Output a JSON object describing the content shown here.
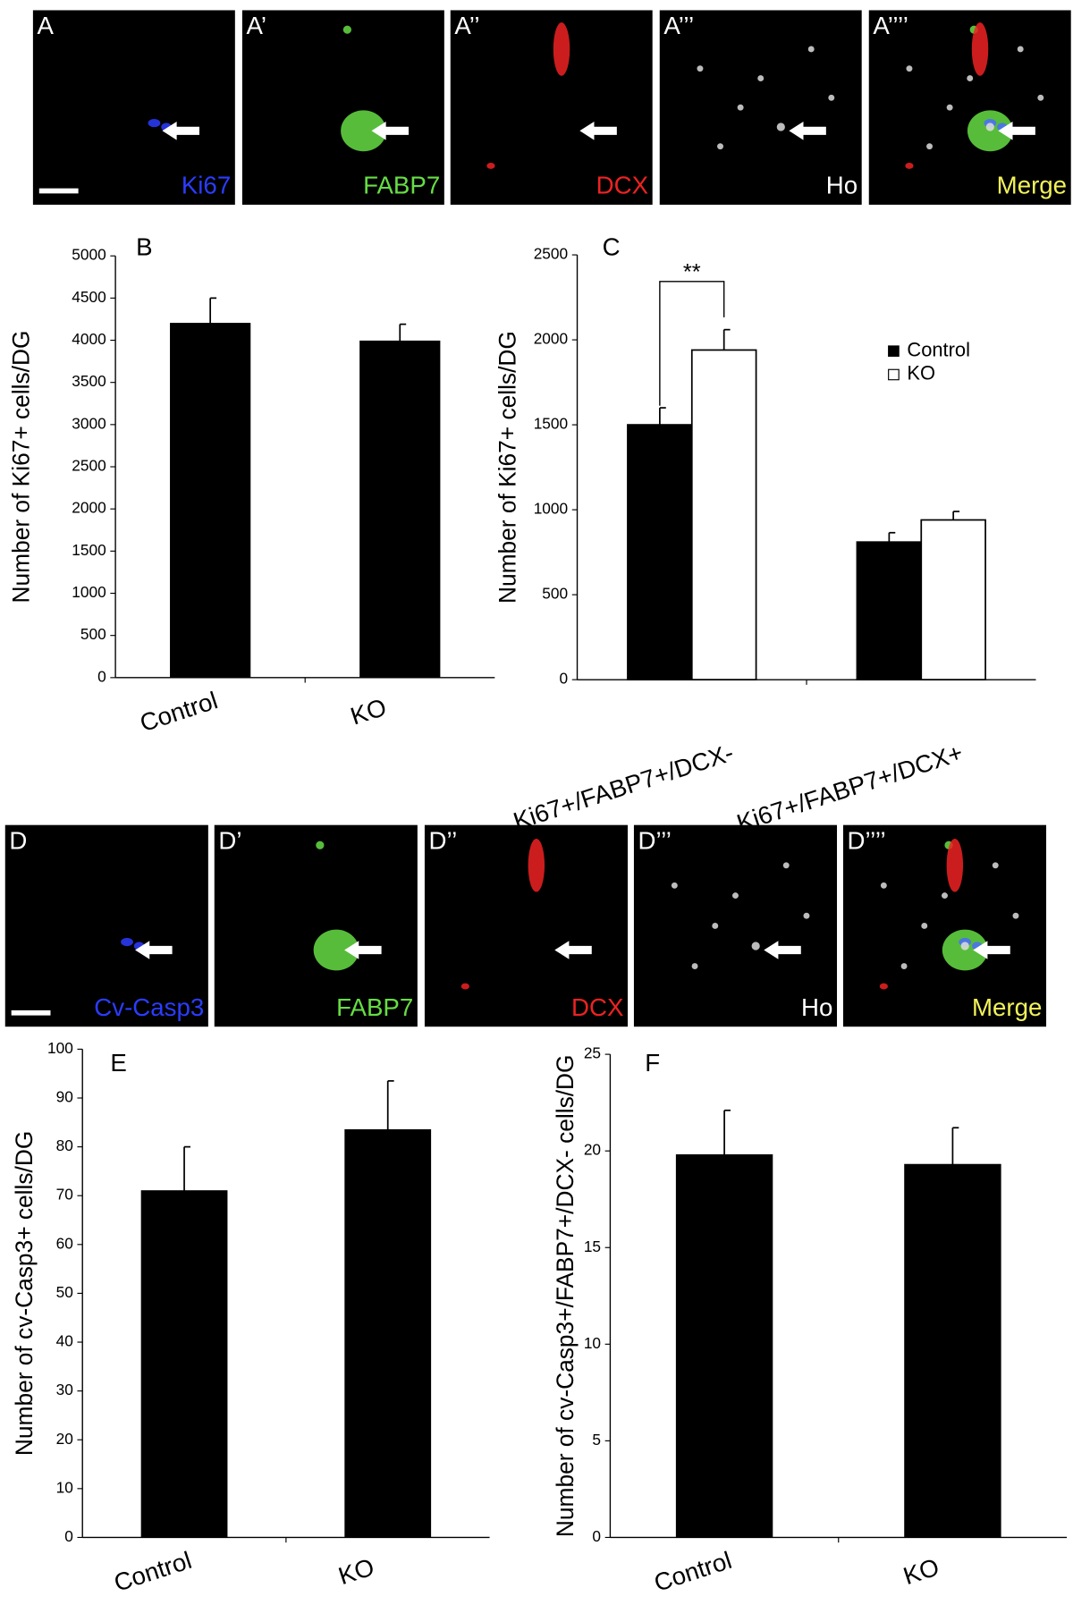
{
  "image_panels": [
    {
      "panels": [
        {
          "label": "A",
          "channel": "Ki67",
          "color": "#2b3cff"
        },
        {
          "label": "A’",
          "channel": "FABP7",
          "color": "#66dd44"
        },
        {
          "label": "A’’",
          "channel": "DCX",
          "color": "#ee2222"
        },
        {
          "label": "A’’’",
          "channel": "Ho",
          "color": "#ffffff"
        },
        {
          "label": "A’’’’",
          "channel": "Merge",
          "color": "#f2f25a"
        }
      ]
    },
    {
      "panels": [
        {
          "label": "D",
          "channel": "Cv-Casp3",
          "color": "#2b3cff"
        },
        {
          "label": "D’",
          "channel": "FABP7",
          "color": "#66dd44"
        },
        {
          "label": "D’’",
          "channel": "DCX",
          "color": "#ee2222"
        },
        {
          "label": "D’’’",
          "channel": "Ho",
          "color": "#ffffff"
        },
        {
          "label": "D’’’’",
          "channel": "Merge",
          "color": "#f2f25a"
        }
      ]
    }
  ],
  "chart_data": [
    {
      "type": "bar",
      "panel_label": "B",
      "y_label": "Number of Ki67+ cells/DG",
      "categories": [
        "Control",
        "KO"
      ],
      "values": [
        4200,
        3990
      ],
      "errors": [
        300,
        200
      ],
      "color": "#000000",
      "ylim": [
        0,
        5000
      ],
      "yticks": [
        0,
        500,
        1000,
        1500,
        2000,
        2500,
        3000,
        3500,
        4000,
        4500,
        5000
      ],
      "grid": false
    },
    {
      "type": "grouped_bar",
      "panel_label": "C",
      "y_label": "Number of Ki67+ cells/DG",
      "categories": [
        "Ki67+/FABP7+/DCX-",
        "Ki67+/FABP7+/DCX+"
      ],
      "series": [
        {
          "name": "Control",
          "color": "#000000",
          "values": [
            1500,
            810
          ],
          "errors": [
            100,
            55
          ]
        },
        {
          "name": "KO",
          "color": "#ffffff",
          "values": [
            1940,
            940
          ],
          "errors": [
            120,
            50
          ]
        }
      ],
      "annotation": "**",
      "legend": "upper right",
      "ylim": [
        0,
        2500
      ],
      "yticks": [
        0,
        500,
        1000,
        1500,
        2000,
        2500
      ],
      "grid": false
    },
    {
      "type": "bar",
      "panel_label": "E",
      "y_label": "Number of cv-Casp3+ cells/DG",
      "categories": [
        "Control",
        "KO"
      ],
      "values": [
        71,
        83.5
      ],
      "errors": [
        9,
        10
      ],
      "color": "#000000",
      "ylim": [
        0,
        100
      ],
      "yticks": [
        0,
        10,
        20,
        30,
        40,
        50,
        60,
        70,
        80,
        90,
        100
      ],
      "grid": false
    },
    {
      "type": "bar",
      "panel_label": "F",
      "y_label": "Number of cv-Casp3+/FABP7+/DCX- cells/DG",
      "categories": [
        "Control",
        "KO"
      ],
      "values": [
        19.8,
        19.3
      ],
      "errors": [
        2.3,
        1.9
      ],
      "color": "#000000",
      "ylim": [
        0,
        25
      ],
      "yticks": [
        0,
        5,
        10,
        15,
        20,
        25
      ],
      "grid": false
    }
  ]
}
